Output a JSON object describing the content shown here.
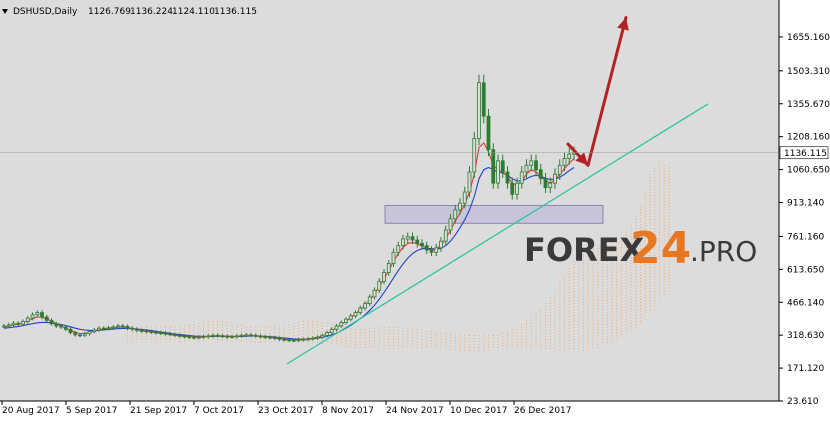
{
  "header": {
    "symbol": "DSHUSD,Daily",
    "open": "1126.769",
    "high": "1136.224",
    "low": "1124.110",
    "close": "1136.115"
  },
  "price_tag": "1136.115",
  "watermark": {
    "main": "FOREX",
    "number": "24",
    "suffix": ".PRO"
  },
  "colors": {
    "background": "#dcdcdc",
    "candle": "#2e7d32",
    "tenkan": "#e53935",
    "kijun": "#1e3fd0",
    "cloud": "#f4a460",
    "trendline": "#2ec4a0",
    "arrow": "#b22222",
    "zone": "#b8b0d8"
  },
  "chart_data": {
    "type": "candlestick",
    "title": "",
    "xlabel": "",
    "ylabel": "",
    "ylim": [
      23.61,
      1740
    ],
    "y_ticks": [
      "1655.160",
      "1503.310",
      "1355.670",
      "1208.160",
      "1060.650",
      "913.140",
      "761.160",
      "613.650",
      "466.140",
      "318.630",
      "171.120",
      "23.610"
    ],
    "x_ticks": [
      "20 Aug 2017",
      "5 Sep 2017",
      "21 Sep 2017",
      "7 Oct 2017",
      "23 Oct 2017",
      "8 Nov 2017",
      "24 Nov 2017",
      "10 Dec 2017",
      "26 Dec 2017"
    ],
    "close_series": [
      360,
      365,
      372,
      368,
      380,
      395,
      410,
      420,
      400,
      385,
      370,
      360,
      355,
      345,
      330,
      320,
      318,
      325,
      335,
      342,
      350,
      348,
      352,
      355,
      360,
      358,
      350,
      345,
      340,
      338,
      335,
      332,
      330,
      328,
      325,
      322,
      318,
      315,
      312,
      310,
      308,
      310,
      312,
      315,
      318,
      316,
      314,
      310,
      312,
      315,
      318,
      320,
      318,
      315,
      312,
      310,
      308,
      305,
      300,
      298,
      296,
      295,
      298,
      300,
      302,
      305,
      310,
      318,
      330,
      345,
      360,
      375,
      390,
      405,
      420,
      440,
      460,
      490,
      520,
      560,
      600,
      640,
      690,
      720,
      750,
      760,
      745,
      730,
      720,
      700,
      690,
      710,
      740,
      790,
      840,
      880,
      910,
      960,
      1050,
      1200,
      1450,
      1300,
      1150,
      1000,
      1100,
      1050,
      1000,
      950,
      1000,
      1050,
      1080,
      1100,
      1060,
      1020,
      980,
      1000,
      1040,
      1080,
      1110,
      1130,
      1136.115
    ],
    "tenkan_series": [
      355,
      360,
      365,
      368,
      374,
      382,
      392,
      400,
      400,
      392,
      382,
      370,
      360,
      350,
      340,
      332,
      326,
      326,
      330,
      336,
      342,
      346,
      350,
      352,
      355,
      356,
      352,
      348,
      344,
      340,
      336,
      333,
      330,
      327,
      324,
      321,
      318,
      316,
      314,
      312,
      311,
      311,
      312,
      313,
      315,
      316,
      315,
      314,
      313,
      313,
      315,
      317,
      317,
      316,
      314,
      312,
      310,
      307,
      304,
      301,
      299,
      298,
      299,
      300,
      302,
      305,
      309,
      315,
      325,
      338,
      352,
      366,
      382,
      398,
      414,
      432,
      452,
      476,
      504,
      536,
      572,
      610,
      650,
      685,
      712,
      730,
      734,
      728,
      718,
      706,
      700,
      706,
      722,
      752,
      790,
      830,
      866,
      906,
      960,
      1040,
      1160,
      1180,
      1140,
      1080,
      1060,
      1050,
      1030,
      1000,
      990,
      1010,
      1040,
      1060,
      1050,
      1030,
      1010,
      1000,
      1015,
      1040,
      1065,
      1090,
      1110
    ],
    "kijun_series": [
      350,
      352,
      355,
      358,
      362,
      366,
      370,
      374,
      376,
      376,
      374,
      370,
      366,
      362,
      356,
      350,
      345,
      342,
      340,
      340,
      341,
      342,
      344,
      346,
      348,
      349,
      349,
      348,
      346,
      344,
      342,
      339,
      336,
      333,
      330,
      327,
      324,
      321,
      319,
      317,
      315,
      314,
      313,
      313,
      313,
      314,
      314,
      314,
      313,
      313,
      313,
      314,
      315,
      315,
      314,
      313,
      312,
      310,
      308,
      306,
      304,
      302,
      301,
      301,
      302,
      303,
      305,
      308,
      313,
      320,
      328,
      338,
      350,
      363,
      377,
      393,
      410,
      430,
      453,
      480,
      510,
      542,
      575,
      608,
      638,
      664,
      684,
      698,
      706,
      708,
      706,
      704,
      708,
      720,
      740,
      768,
      800,
      836,
      880,
      940,
      1020,
      1060,
      1070,
      1060,
      1050,
      1045,
      1035,
      1020,
      1010,
      1010,
      1020,
      1030,
      1035,
      1030,
      1022,
      1016,
      1018,
      1026,
      1040,
      1056,
      1070
    ]
  }
}
